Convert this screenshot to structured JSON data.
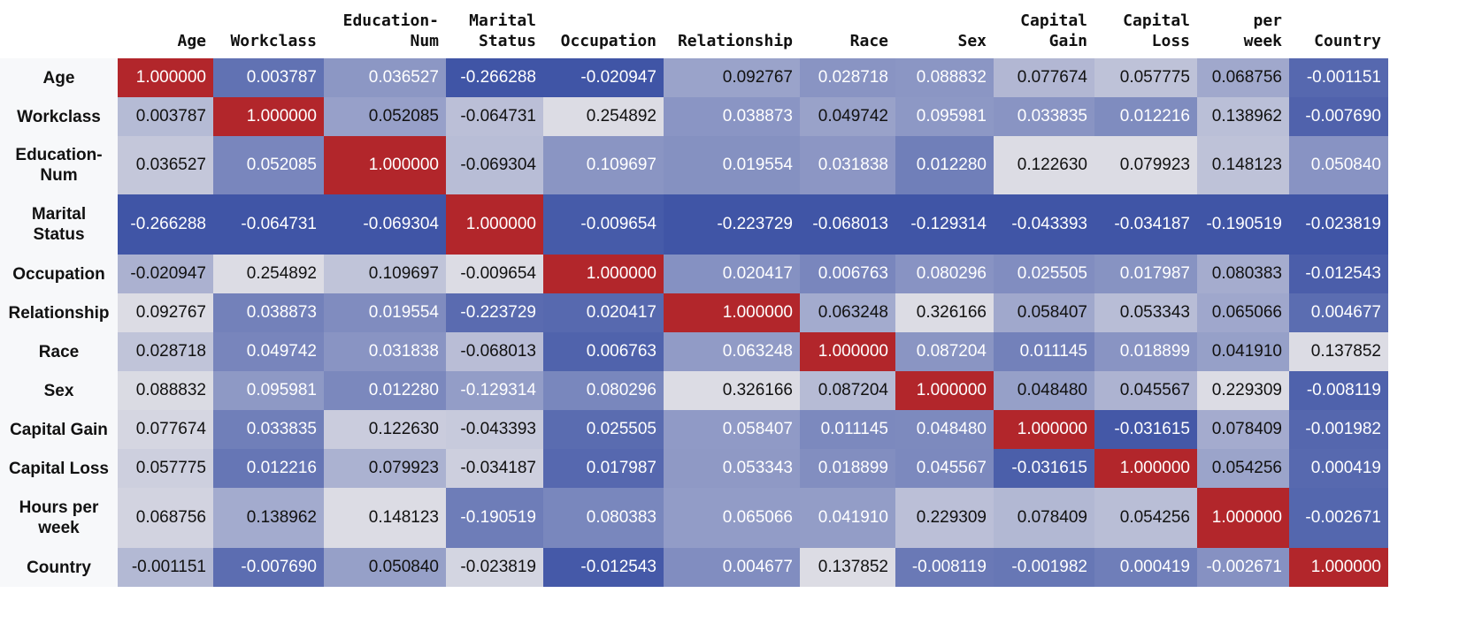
{
  "columns": [
    "Age",
    "Workclass",
    "Education-\nNum",
    "Marital\nStatus",
    "Occupation",
    "Relationship",
    "Race",
    "Sex",
    "Capital\nGain",
    "Capital\nLoss",
    "per\nweek",
    "Country"
  ],
  "rows": [
    {
      "label": "Age",
      "values": [
        "1.000000",
        "0.003787",
        "0.036527",
        "-0.266288",
        "-0.020947",
        "0.092767",
        "0.028718",
        "0.088832",
        "0.077674",
        "0.057775",
        "0.068756",
        "-0.001151"
      ]
    },
    {
      "label": "Workclass",
      "values": [
        "0.003787",
        "1.000000",
        "0.052085",
        "-0.064731",
        "0.254892",
        "0.038873",
        "0.049742",
        "0.095981",
        "0.033835",
        "0.012216",
        "0.138962",
        "-0.007690"
      ]
    },
    {
      "label": "Education-\nNum",
      "values": [
        "0.036527",
        "0.052085",
        "1.000000",
        "-0.069304",
        "0.109697",
        "0.019554",
        "0.031838",
        "0.012280",
        "0.122630",
        "0.079923",
        "0.148123",
        "0.050840"
      ]
    },
    {
      "label": "Marital\nStatus",
      "values": [
        "-0.266288",
        "-0.064731",
        "-0.069304",
        "1.000000",
        "-0.009654",
        "-0.223729",
        "-0.068013",
        "-0.129314",
        "-0.043393",
        "-0.034187",
        "-0.190519",
        "-0.023819"
      ]
    },
    {
      "label": "Occupation",
      "values": [
        "-0.020947",
        "0.254892",
        "0.109697",
        "-0.009654",
        "1.000000",
        "0.020417",
        "0.006763",
        "0.080296",
        "0.025505",
        "0.017987",
        "0.080383",
        "-0.012543"
      ]
    },
    {
      "label": "Relationship",
      "values": [
        "0.092767",
        "0.038873",
        "0.019554",
        "-0.223729",
        "0.020417",
        "1.000000",
        "0.063248",
        "0.326166",
        "0.058407",
        "0.053343",
        "0.065066",
        "0.004677"
      ]
    },
    {
      "label": "Race",
      "values": [
        "0.028718",
        "0.049742",
        "0.031838",
        "-0.068013",
        "0.006763",
        "0.063248",
        "1.000000",
        "0.087204",
        "0.011145",
        "0.018899",
        "0.041910",
        "0.137852"
      ]
    },
    {
      "label": "Sex",
      "values": [
        "0.088832",
        "0.095981",
        "0.012280",
        "-0.129314",
        "0.080296",
        "0.326166",
        "0.087204",
        "1.000000",
        "0.048480",
        "0.045567",
        "0.229309",
        "-0.008119"
      ]
    },
    {
      "label": "Capital Gain",
      "values": [
        "0.077674",
        "0.033835",
        "0.122630",
        "-0.043393",
        "0.025505",
        "0.058407",
        "0.011145",
        "0.048480",
        "1.000000",
        "-0.031615",
        "0.078409",
        "-0.001982"
      ]
    },
    {
      "label": "Capital Loss",
      "values": [
        "0.057775",
        "0.012216",
        "0.079923",
        "-0.034187",
        "0.017987",
        "0.053343",
        "0.018899",
        "0.045567",
        "-0.031615",
        "1.000000",
        "0.054256",
        "0.000419"
      ]
    },
    {
      "label": "Hours per\nweek",
      "values": [
        "0.068756",
        "0.138962",
        "0.148123",
        "-0.190519",
        "0.080383",
        "0.065066",
        "0.041910",
        "0.229309",
        "0.078409",
        "0.054256",
        "1.000000",
        "-0.002671"
      ]
    },
    {
      "label": "Country",
      "values": [
        "-0.001151",
        "-0.007690",
        "0.050840",
        "-0.023819",
        "-0.012543",
        "0.004677",
        "0.137852",
        "-0.008119",
        "-0.001982",
        "0.000419",
        "-0.002671",
        "1.000000"
      ]
    }
  ],
  "colors": {
    "diagonal": "#b2262b",
    "scale_dark": "#4055a6",
    "scale_light": "#dcdce4",
    "text_light": "#ffffff",
    "text_dark": "#111111"
  }
}
